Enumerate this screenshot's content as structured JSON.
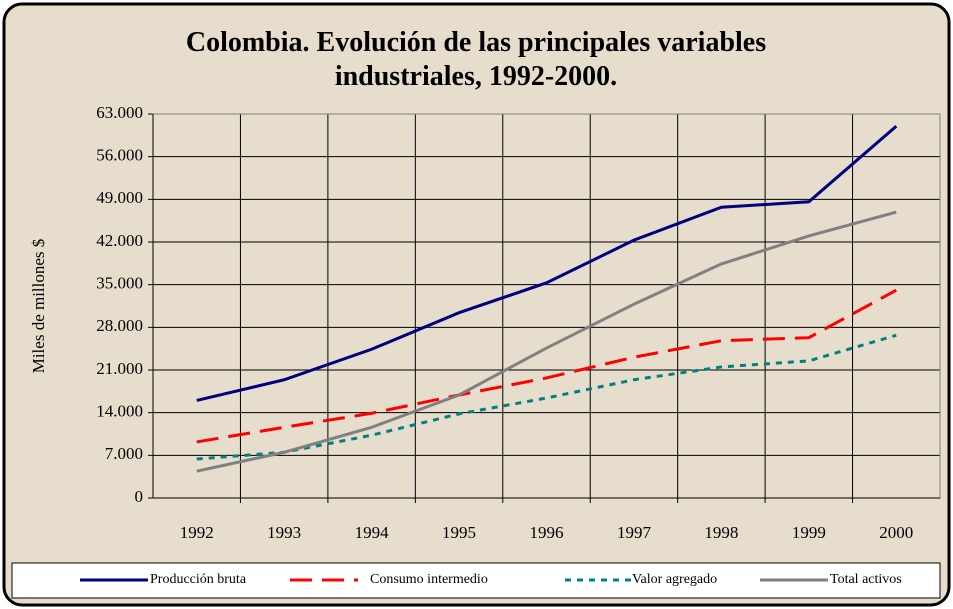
{
  "chart_data": {
    "type": "line",
    "title": "Colombia. Evolución de las principales variables industriales, 1992-2000.",
    "ylabel": "Miles de millones $",
    "categories": [
      "1992",
      "1993",
      "1994",
      "1995",
      "1996",
      "1997",
      "1998",
      "1999",
      "2000"
    ],
    "series": [
      {
        "name": "Producción bruta",
        "color": "#000080",
        "dash": "solid",
        "values": [
          16000,
          19400,
          24400,
          30400,
          35300,
          42300,
          47700,
          48600,
          61000
        ]
      },
      {
        "name": "Consumo intermedio",
        "color": "#ff0000",
        "dash": "dashed",
        "values": [
          9200,
          11600,
          13900,
          16900,
          19700,
          23100,
          25800,
          26300,
          34100
        ]
      },
      {
        "name": "Valor agregado",
        "color": "#008080",
        "dash": "dotted",
        "values": [
          6400,
          7500,
          10300,
          13800,
          16400,
          19400,
          21500,
          22500,
          26700
        ]
      },
      {
        "name": "Total activos",
        "color": "#808080",
        "dash": "solid",
        "values": [
          4400,
          7500,
          11600,
          16900,
          24600,
          31800,
          38400,
          43000,
          46900
        ]
      }
    ],
    "ylim": [
      0,
      63000
    ],
    "yticks": [
      0,
      {
        "value": 7000,
        "label": "7.000"
      },
      {
        "value": 14000,
        "label": "14.000"
      },
      {
        "value": 21000,
        "label": "21.000"
      },
      {
        "value": 28000,
        "label": "28.000"
      },
      {
        "value": 35000,
        "label": "35.000"
      },
      {
        "value": 42000,
        "label": "42.000"
      },
      {
        "value": 49000,
        "label": "49.000"
      },
      {
        "value": 56000,
        "label": "56.000"
      },
      {
        "value": 63000,
        "label": "63.000"
      }
    ],
    "grid": true,
    "legend": "bottom"
  }
}
